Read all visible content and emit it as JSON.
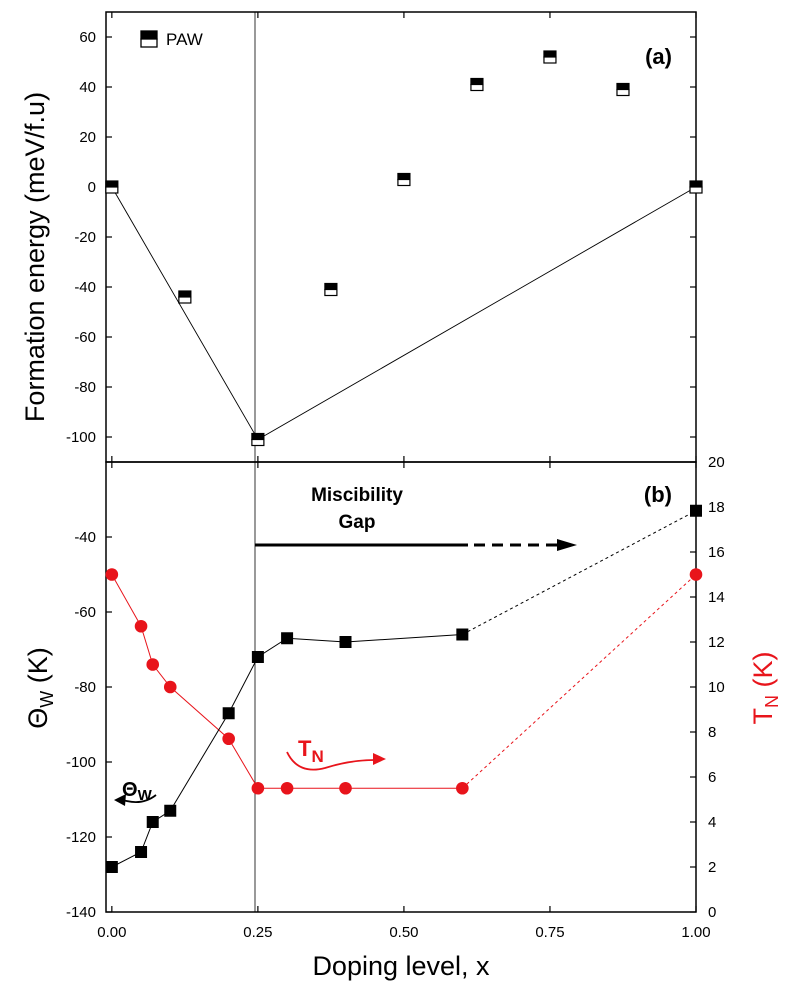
{
  "chart_data": [
    {
      "type": "scatter",
      "panel_label": "(a)",
      "ylabel": "Formation energy (meV/f.u)",
      "ylim": [
        -110,
        70
      ],
      "xlim": [
        -0.01,
        1.0
      ],
      "grid": false,
      "legend": {
        "position": "top-left",
        "entries": [
          "PAW"
        ]
      },
      "series": [
        {
          "name": "PAW",
          "marker": "half-filled-square",
          "x": [
            0,
            0.125,
            0.25,
            0.375,
            0.5,
            0.625,
            0.75,
            0.875,
            1.0
          ],
          "y": [
            0,
            -44,
            -101,
            -41,
            3,
            41,
            52,
            39,
            0
          ]
        }
      ],
      "convex_hull": {
        "x": [
          0,
          0.25,
          1.0
        ],
        "y": [
          0,
          -101,
          0
        ]
      }
    },
    {
      "type": "line",
      "panel_label": "(b)",
      "xlabel": "Doping level, x",
      "ylabel_left": "ΘW (K)",
      "ylabel_right": "TN (K)",
      "ylim_left": [
        -140,
        -20
      ],
      "ylim_right": [
        0,
        20
      ],
      "xlim": [
        -0.01,
        1.0
      ],
      "grid": false,
      "series": [
        {
          "name": "ΘW",
          "axis": "left",
          "color": "#000000",
          "marker": "square",
          "x": [
            0,
            0.05,
            0.07,
            0.1,
            0.2,
            0.25,
            0.3,
            0.4,
            0.6,
            1.0
          ],
          "y": [
            -128,
            -124,
            -116,
            -113,
            -87,
            -72,
            -67,
            -68,
            -66,
            -33
          ],
          "dashed_from_x": 0.6
        },
        {
          "name": "TN",
          "axis": "right",
          "color": "#e8141b",
          "marker": "circle",
          "x": [
            0,
            0.05,
            0.07,
            0.1,
            0.2,
            0.25,
            0.3,
            0.4,
            0.6,
            1.0
          ],
          "y": [
            15,
            12.7,
            11,
            10,
            7.7,
            5.5,
            5.5,
            5.5,
            5.5,
            15
          ],
          "dashed_from_x": 0.6
        }
      ],
      "annotations": {
        "miscibility_line1": "Miscibility",
        "miscibility_line2": "Gap",
        "miscibility_range": [
          0.25,
          0.8
        ],
        "theta_main": "Θ",
        "theta_sub": "W",
        "tn_main": "T",
        "tn_sub": "N"
      }
    }
  ],
  "x_ticks": [
    "0.00",
    "0.25",
    "0.50",
    "0.75",
    "1.00"
  ],
  "x_tick_values": [
    0,
    0.25,
    0.5,
    0.75,
    1.0
  ],
  "a_y_ticks": [
    "60",
    "40",
    "20",
    "0",
    "-20",
    "-40",
    "-60",
    "-80",
    "-100"
  ],
  "a_y_tick_values": [
    60,
    40,
    20,
    0,
    -20,
    -40,
    -60,
    -80,
    -100
  ],
  "b_left_ticks": [
    "-40",
    "-60",
    "-80",
    "-100",
    "-120",
    "-140"
  ],
  "b_left_tick_values": [
    -40,
    -60,
    -80,
    -100,
    -120,
    -140
  ],
  "b_right_ticks": [
    "20",
    "18",
    "16",
    "14",
    "12",
    "10",
    "8",
    "6",
    "4",
    "2",
    "0"
  ],
  "b_right_tick_values": [
    20,
    18,
    16,
    14,
    12,
    10,
    8,
    6,
    4,
    2,
    0
  ],
  "colors": {
    "black": "#000000",
    "red": "#e8141b",
    "axis": "#000000"
  }
}
